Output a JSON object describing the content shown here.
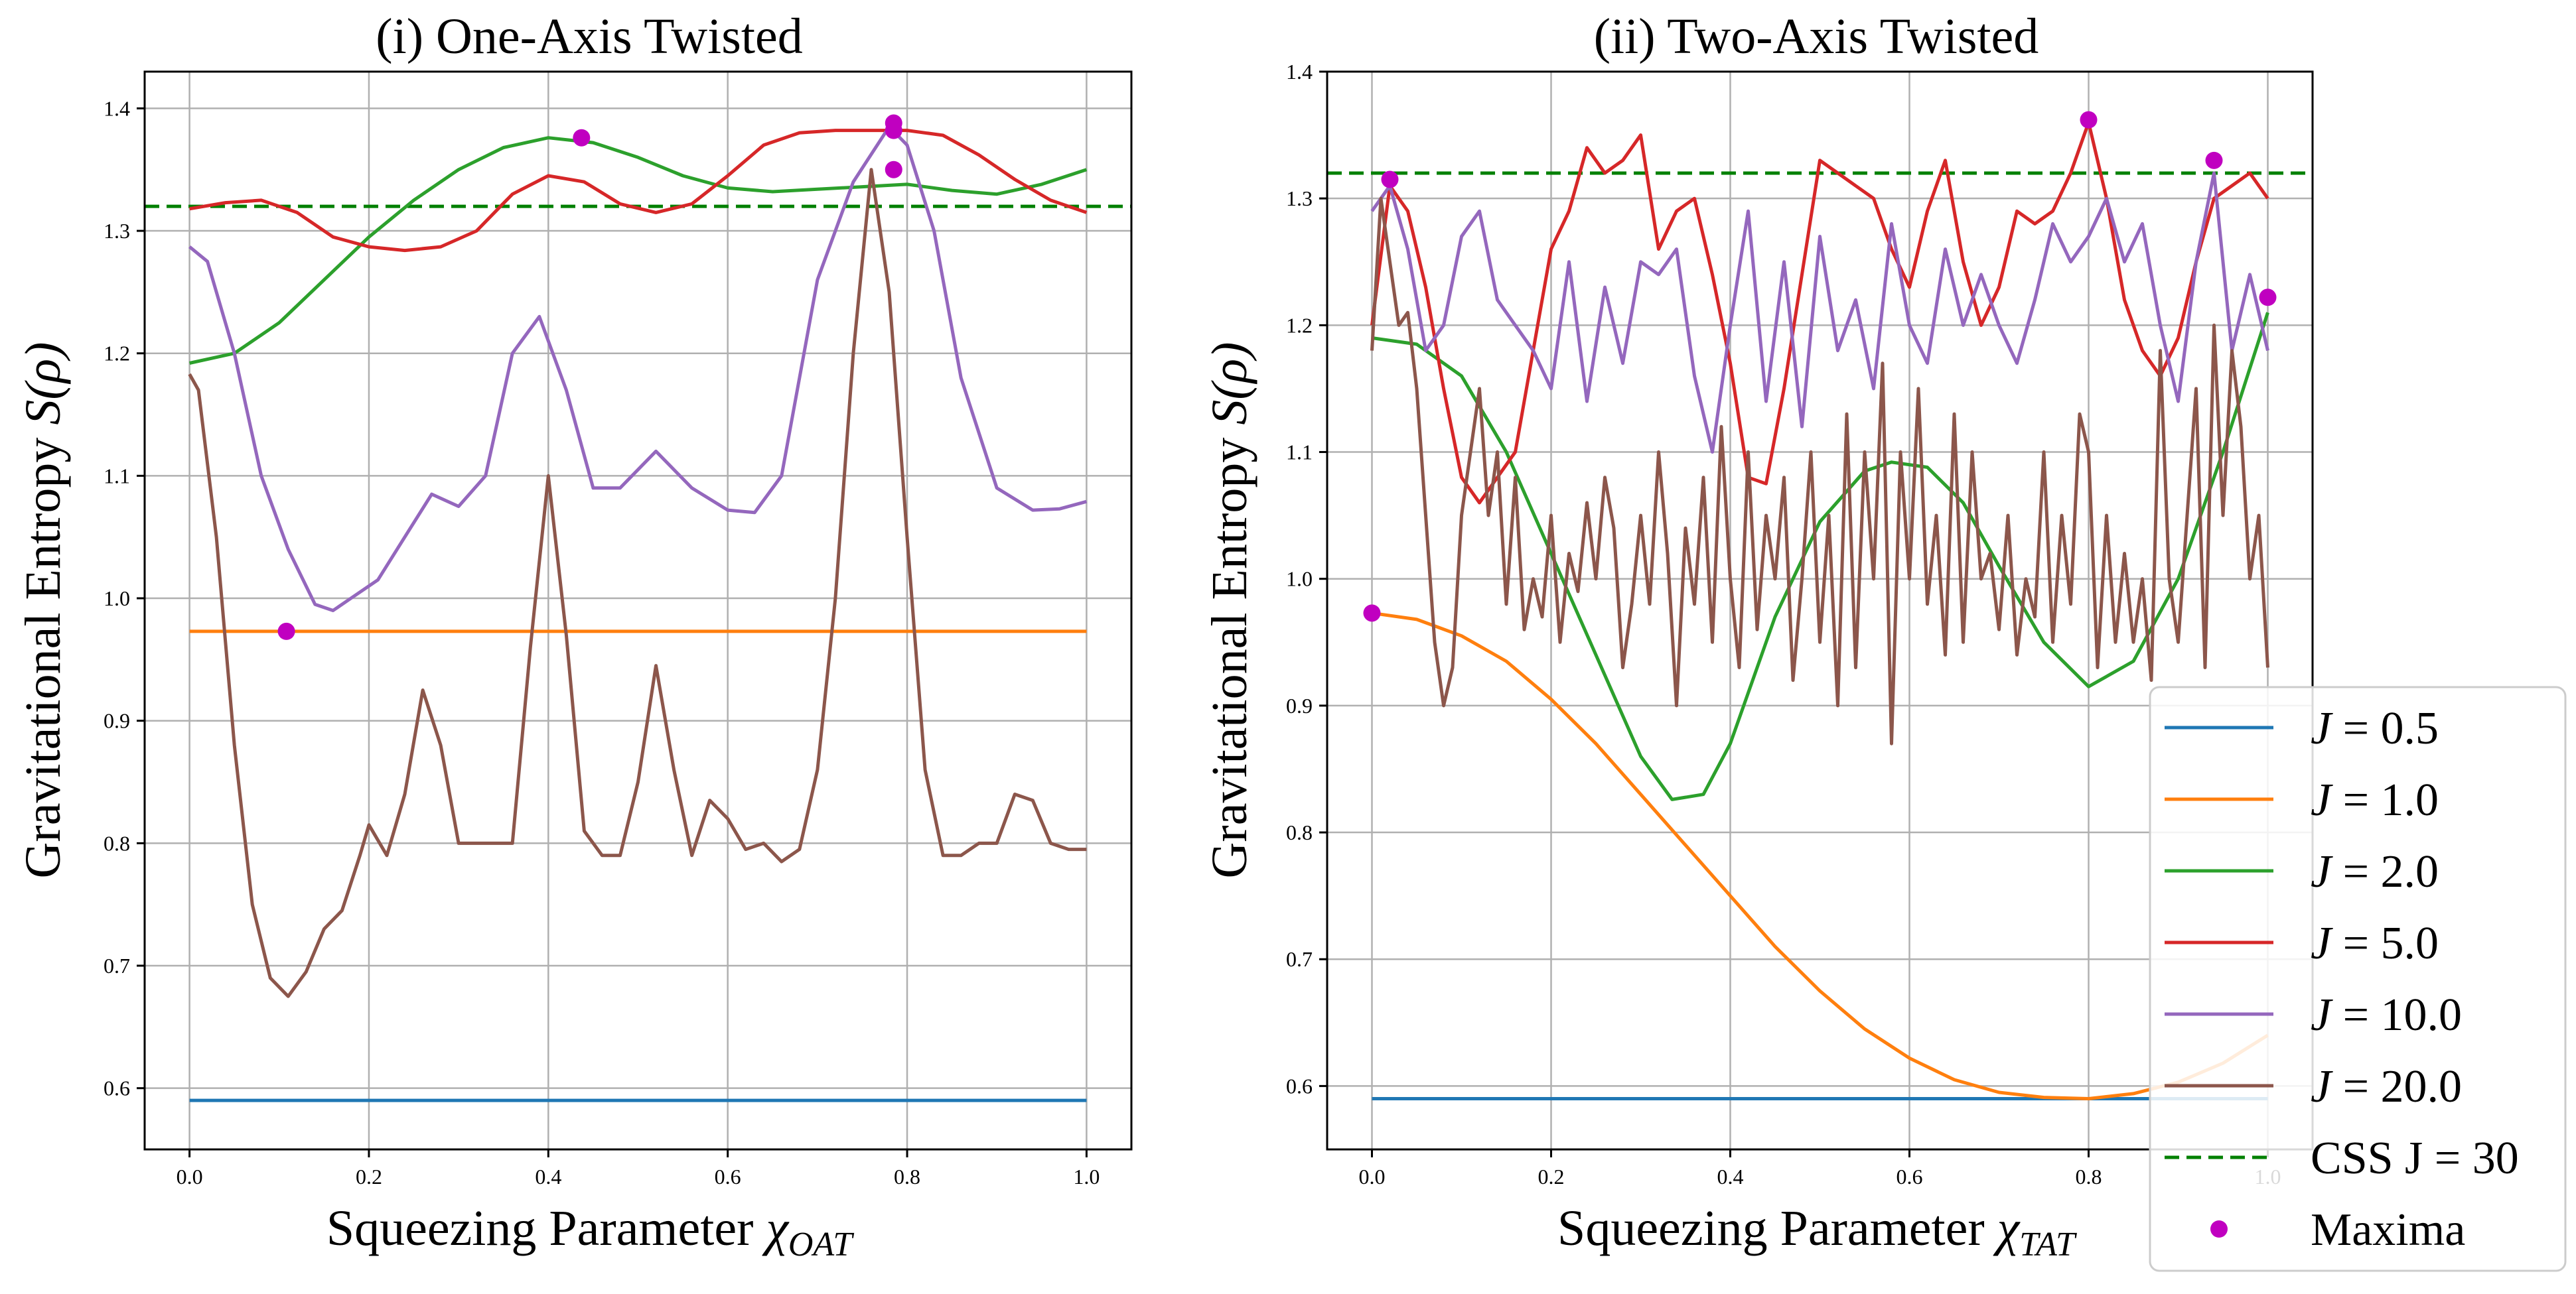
{
  "figure": {
    "legend": {
      "entries": [
        {
          "label_prefix": "J",
          "label_value": "= 0.5",
          "color": "#1f77b4",
          "style": "solid"
        },
        {
          "label_prefix": "J",
          "label_value": "= 1.0",
          "color": "#ff7f0e",
          "style": "solid"
        },
        {
          "label_prefix": "J",
          "label_value": "= 2.0",
          "color": "#2ca02c",
          "style": "solid"
        },
        {
          "label_prefix": "J",
          "label_value": "= 5.0",
          "color": "#d62728",
          "style": "solid"
        },
        {
          "label_prefix": "J",
          "label_value": "= 10.0",
          "color": "#9467bd",
          "style": "solid"
        },
        {
          "label_prefix": "J",
          "label_value": "= 20.0",
          "color": "#8c564b",
          "style": "solid"
        },
        {
          "label_prefix": "CSS J",
          "label_value": "= 30",
          "color": "#008000",
          "style": "dashed"
        },
        {
          "label_prefix": "Maxima",
          "label_value": "",
          "color": "#c000c0",
          "style": "marker"
        }
      ],
      "placement": "bottom-right"
    }
  },
  "chart_data": [
    {
      "type": "line",
      "title": "(i) One-Axis Twisted",
      "xlabel_main": "Squeezing Parameter ",
      "xlabel_sym": "χ",
      "xlabel_sub": "OAT",
      "ylabel_main": "Gravitational Entropy ",
      "ylabel_sym": "S(ρ)",
      "xlim": [
        -0.05,
        1.05
      ],
      "ylim": [
        0.55,
        1.43
      ],
      "xticks": [
        0.0,
        0.2,
        0.4,
        0.6,
        0.8,
        1.0
      ],
      "xtick_labels": [
        "0.0",
        "0.2",
        "0.4",
        "0.6",
        "0.8",
        "1.0"
      ],
      "yticks": [
        0.6,
        0.7,
        0.8,
        0.9,
        1.0,
        1.1,
        1.2,
        1.3,
        1.4
      ],
      "ytick_labels": [
        "0.6",
        "0.7",
        "0.8",
        "0.9",
        "1.0",
        "1.1",
        "1.2",
        "1.3",
        "1.4"
      ],
      "grid": true,
      "hline": {
        "label": "CSS J = 30",
        "y": 1.32,
        "color": "#008000"
      },
      "series": [
        {
          "name": "J = 0.5",
          "color": "#1f77b4",
          "x": [
            0.0,
            1.0
          ],
          "y": [
            0.59,
            0.59
          ]
        },
        {
          "name": "J = 1.0",
          "color": "#ff7f0e",
          "x": [
            0.0,
            1.0
          ],
          "y": [
            0.973,
            0.973
          ]
        },
        {
          "name": "J = 2.0",
          "color": "#2ca02c",
          "x": [
            0.0,
            0.05,
            0.1,
            0.15,
            0.2,
            0.25,
            0.3,
            0.35,
            0.4,
            0.45,
            0.5,
            0.55,
            0.6,
            0.65,
            0.7,
            0.75,
            0.8,
            0.85,
            0.9,
            0.95,
            1.0
          ],
          "y": [
            1.192,
            1.2,
            1.225,
            1.26,
            1.295,
            1.325,
            1.35,
            1.368,
            1.376,
            1.372,
            1.36,
            1.345,
            1.335,
            1.332,
            1.334,
            1.336,
            1.338,
            1.333,
            1.33,
            1.338,
            1.35
          ]
        },
        {
          "name": "J = 5.0",
          "color": "#d62728",
          "x": [
            0.0,
            0.04,
            0.08,
            0.12,
            0.16,
            0.2,
            0.24,
            0.28,
            0.32,
            0.36,
            0.4,
            0.44,
            0.48,
            0.52,
            0.56,
            0.6,
            0.64,
            0.68,
            0.72,
            0.76,
            0.8,
            0.84,
            0.88,
            0.92,
            0.96,
            1.0
          ],
          "y": [
            1.318,
            1.323,
            1.325,
            1.315,
            1.295,
            1.287,
            1.284,
            1.287,
            1.3,
            1.33,
            1.345,
            1.34,
            1.322,
            1.315,
            1.322,
            1.345,
            1.37,
            1.38,
            1.382,
            1.382,
            1.382,
            1.378,
            1.362,
            1.342,
            1.325,
            1.315
          ]
        },
        {
          "name": "J = 10.0",
          "color": "#9467bd",
          "x": [
            0.0,
            0.02,
            0.05,
            0.08,
            0.11,
            0.14,
            0.16,
            0.18,
            0.21,
            0.24,
            0.27,
            0.3,
            0.33,
            0.36,
            0.39,
            0.42,
            0.45,
            0.48,
            0.52,
            0.56,
            0.6,
            0.63,
            0.66,
            0.7,
            0.74,
            0.78,
            0.8,
            0.83,
            0.86,
            0.9,
            0.94,
            0.97,
            1.0
          ],
          "y": [
            1.287,
            1.275,
            1.2,
            1.1,
            1.04,
            0.995,
            0.99,
            1.0,
            1.015,
            1.05,
            1.085,
            1.075,
            1.1,
            1.2,
            1.23,
            1.17,
            1.09,
            1.09,
            1.12,
            1.09,
            1.072,
            1.07,
            1.1,
            1.26,
            1.34,
            1.385,
            1.37,
            1.3,
            1.18,
            1.09,
            1.072,
            1.073,
            1.079
          ]
        },
        {
          "name": "J = 20.0",
          "color": "#8c564b",
          "x": [
            0.0,
            0.01,
            0.03,
            0.05,
            0.07,
            0.09,
            0.11,
            0.13,
            0.15,
            0.17,
            0.19,
            0.2,
            0.22,
            0.24,
            0.26,
            0.28,
            0.3,
            0.32,
            0.34,
            0.36,
            0.38,
            0.4,
            0.42,
            0.44,
            0.46,
            0.48,
            0.5,
            0.52,
            0.54,
            0.56,
            0.58,
            0.6,
            0.62,
            0.64,
            0.66,
            0.68,
            0.7,
            0.72,
            0.74,
            0.76,
            0.78,
            0.8,
            0.82,
            0.84,
            0.86,
            0.88,
            0.9,
            0.92,
            0.94,
            0.96,
            0.98,
            1.0
          ],
          "y": [
            1.183,
            1.17,
            1.05,
            0.88,
            0.75,
            0.69,
            0.675,
            0.695,
            0.73,
            0.745,
            0.79,
            0.815,
            0.79,
            0.84,
            0.925,
            0.88,
            0.8,
            0.8,
            0.8,
            0.8,
            0.96,
            1.1,
            0.97,
            0.81,
            0.79,
            0.79,
            0.85,
            0.945,
            0.86,
            0.79,
            0.835,
            0.82,
            0.795,
            0.8,
            0.785,
            0.795,
            0.86,
            1.0,
            1.2,
            1.35,
            1.25,
            1.05,
            0.86,
            0.79,
            0.79,
            0.8,
            0.8,
            0.84,
            0.835,
            0.8,
            0.795,
            0.795
          ]
        }
      ],
      "maxima": {
        "x": [
          0.108,
          0.437,
          0.785,
          0.785,
          0.785
        ],
        "y": [
          0.973,
          1.376,
          1.388,
          1.382,
          1.35
        ]
      }
    },
    {
      "type": "line",
      "title": "(ii) Two-Axis Twisted",
      "xlabel_main": "Squeezing Parameter ",
      "xlabel_sym": "χ",
      "xlabel_sub": "TAT",
      "ylabel_main": "Gravitational Entropy ",
      "ylabel_sym": "S(ρ)",
      "xlim": [
        -0.05,
        1.05
      ],
      "ylim": [
        0.55,
        1.4
      ],
      "xticks": [
        0.0,
        0.2,
        0.4,
        0.6,
        0.8,
        1.0
      ],
      "xtick_labels": [
        "0.0",
        "0.2",
        "0.4",
        "0.6",
        "0.8",
        "1.0"
      ],
      "yticks": [
        0.6,
        0.7,
        0.8,
        0.9,
        1.0,
        1.1,
        1.2,
        1.3,
        1.4
      ],
      "ytick_labels": [
        "0.6",
        "0.7",
        "0.8",
        "0.9",
        "1.0",
        "1.1",
        "1.2",
        "1.3",
        "1.4"
      ],
      "grid": true,
      "hline": {
        "label": "CSS J = 30",
        "y": 1.32,
        "color": "#008000"
      },
      "series": [
        {
          "name": "J = 0.5",
          "color": "#1f77b4",
          "x": [
            0.0,
            1.0
          ],
          "y": [
            0.59,
            0.59
          ]
        },
        {
          "name": "J = 1.0",
          "color": "#ff7f0e",
          "x": [
            0.0,
            0.05,
            0.1,
            0.15,
            0.2,
            0.25,
            0.3,
            0.35,
            0.4,
            0.45,
            0.5,
            0.55,
            0.6,
            0.65,
            0.7,
            0.75,
            0.8,
            0.85,
            0.9,
            0.95,
            1.0
          ],
          "y": [
            0.973,
            0.968,
            0.955,
            0.935,
            0.905,
            0.87,
            0.83,
            0.79,
            0.75,
            0.71,
            0.675,
            0.645,
            0.622,
            0.605,
            0.595,
            0.591,
            0.59,
            0.594,
            0.603,
            0.618,
            0.64
          ]
        },
        {
          "name": "J = 2.0",
          "color": "#2ca02c",
          "x": [
            0.0,
            0.05,
            0.1,
            0.15,
            0.2,
            0.25,
            0.3,
            0.335,
            0.37,
            0.4,
            0.45,
            0.5,
            0.55,
            0.58,
            0.62,
            0.66,
            0.7,
            0.75,
            0.8,
            0.85,
            0.9,
            0.95,
            1.0
          ],
          "y": [
            1.19,
            1.185,
            1.16,
            1.1,
            1.02,
            0.94,
            0.86,
            0.826,
            0.83,
            0.87,
            0.97,
            1.045,
            1.085,
            1.092,
            1.088,
            1.06,
            1.01,
            0.95,
            0.915,
            0.935,
            1.0,
            1.1,
            1.21
          ]
        },
        {
          "name": "J = 5.0",
          "color": "#d62728",
          "x": [
            0.0,
            0.02,
            0.04,
            0.06,
            0.08,
            0.1,
            0.12,
            0.14,
            0.16,
            0.18,
            0.2,
            0.22,
            0.24,
            0.26,
            0.28,
            0.3,
            0.32,
            0.34,
            0.36,
            0.38,
            0.4,
            0.42,
            0.44,
            0.46,
            0.48,
            0.5,
            0.52,
            0.54,
            0.56,
            0.58,
            0.6,
            0.62,
            0.64,
            0.66,
            0.68,
            0.7,
            0.72,
            0.74,
            0.76,
            0.78,
            0.8,
            0.82,
            0.84,
            0.86,
            0.88,
            0.9,
            0.92,
            0.94,
            0.96,
            0.98,
            1.0
          ],
          "y": [
            1.2,
            1.31,
            1.29,
            1.23,
            1.15,
            1.08,
            1.06,
            1.08,
            1.1,
            1.18,
            1.26,
            1.29,
            1.34,
            1.32,
            1.33,
            1.35,
            1.26,
            1.29,
            1.3,
            1.24,
            1.17,
            1.08,
            1.075,
            1.15,
            1.24,
            1.33,
            1.32,
            1.31,
            1.3,
            1.26,
            1.23,
            1.29,
            1.33,
            1.25,
            1.2,
            1.23,
            1.29,
            1.28,
            1.29,
            1.32,
            1.36,
            1.3,
            1.22,
            1.18,
            1.16,
            1.19,
            1.25,
            1.3,
            1.31,
            1.32,
            1.3
          ]
        },
        {
          "name": "J = 10.0",
          "color": "#9467bd",
          "x": [
            0.0,
            0.02,
            0.04,
            0.06,
            0.08,
            0.1,
            0.12,
            0.14,
            0.16,
            0.18,
            0.2,
            0.22,
            0.24,
            0.26,
            0.28,
            0.3,
            0.32,
            0.34,
            0.36,
            0.38,
            0.4,
            0.42,
            0.44,
            0.46,
            0.48,
            0.5,
            0.52,
            0.54,
            0.56,
            0.58,
            0.6,
            0.62,
            0.64,
            0.66,
            0.68,
            0.7,
            0.72,
            0.74,
            0.76,
            0.78,
            0.8,
            0.82,
            0.84,
            0.86,
            0.88,
            0.9,
            0.92,
            0.94,
            0.96,
            0.98,
            1.0
          ],
          "y": [
            1.29,
            1.31,
            1.26,
            1.18,
            1.2,
            1.27,
            1.29,
            1.22,
            1.2,
            1.18,
            1.15,
            1.25,
            1.14,
            1.23,
            1.17,
            1.25,
            1.24,
            1.26,
            1.16,
            1.1,
            1.2,
            1.29,
            1.14,
            1.25,
            1.12,
            1.27,
            1.18,
            1.22,
            1.15,
            1.28,
            1.2,
            1.17,
            1.26,
            1.2,
            1.24,
            1.2,
            1.17,
            1.22,
            1.28,
            1.25,
            1.27,
            1.3,
            1.25,
            1.28,
            1.2,
            1.14,
            1.25,
            1.32,
            1.18,
            1.24,
            1.18
          ]
        },
        {
          "name": "J = 20.0",
          "color": "#8c564b",
          "x": [
            0.0,
            0.01,
            0.02,
            0.03,
            0.04,
            0.05,
            0.06,
            0.07,
            0.08,
            0.09,
            0.1,
            0.11,
            0.12,
            0.13,
            0.14,
            0.15,
            0.16,
            0.17,
            0.18,
            0.19,
            0.2,
            0.21,
            0.22,
            0.23,
            0.24,
            0.25,
            0.26,
            0.27,
            0.28,
            0.29,
            0.3,
            0.31,
            0.32,
            0.33,
            0.34,
            0.35,
            0.36,
            0.37,
            0.38,
            0.39,
            0.4,
            0.41,
            0.42,
            0.43,
            0.44,
            0.45,
            0.46,
            0.47,
            0.48,
            0.49,
            0.5,
            0.51,
            0.52,
            0.53,
            0.54,
            0.55,
            0.56,
            0.57,
            0.58,
            0.59,
            0.6,
            0.61,
            0.62,
            0.63,
            0.64,
            0.65,
            0.66,
            0.67,
            0.68,
            0.69,
            0.7,
            0.71,
            0.72,
            0.73,
            0.74,
            0.75,
            0.76,
            0.77,
            0.78,
            0.79,
            0.8,
            0.81,
            0.82,
            0.83,
            0.84,
            0.85,
            0.86,
            0.87,
            0.88,
            0.89,
            0.9,
            0.91,
            0.92,
            0.93,
            0.94,
            0.95,
            0.96,
            0.97,
            0.98,
            0.99,
            1.0
          ],
          "y": [
            1.18,
            1.3,
            1.25,
            1.2,
            1.21,
            1.15,
            1.05,
            0.95,
            0.9,
            0.93,
            1.05,
            1.1,
            1.15,
            1.05,
            1.1,
            0.98,
            1.08,
            0.96,
            1.0,
            0.97,
            1.05,
            0.95,
            1.02,
            0.99,
            1.06,
            1.0,
            1.08,
            1.04,
            0.93,
            0.98,
            1.05,
            0.98,
            1.1,
            1.02,
            0.9,
            1.04,
            0.98,
            1.08,
            0.95,
            1.12,
            1.0,
            0.93,
            1.1,
            0.96,
            1.05,
            1.0,
            1.08,
            0.92,
            1.0,
            1.1,
            0.95,
            1.05,
            0.9,
            1.13,
            0.93,
            1.1,
            1.0,
            1.17,
            0.87,
            1.1,
            1.0,
            1.15,
            0.98,
            1.05,
            0.94,
            1.13,
            0.95,
            1.1,
            1.0,
            1.02,
            0.96,
            1.05,
            0.94,
            1.0,
            0.97,
            1.1,
            0.95,
            1.05,
            0.98,
            1.13,
            1.1,
            0.93,
            1.05,
            0.95,
            1.02,
            0.95,
            1.0,
            0.92,
            1.18,
            1.0,
            0.95,
            1.05,
            1.15,
            0.93,
            1.2,
            1.05,
            1.18,
            1.12,
            1.0,
            1.05,
            0.93
          ]
        }
      ],
      "maxima": {
        "x": [
          0.0,
          0.02,
          0.8,
          0.94,
          1.0
        ],
        "y": [
          0.973,
          1.315,
          1.362,
          1.33,
          1.222
        ]
      }
    }
  ]
}
